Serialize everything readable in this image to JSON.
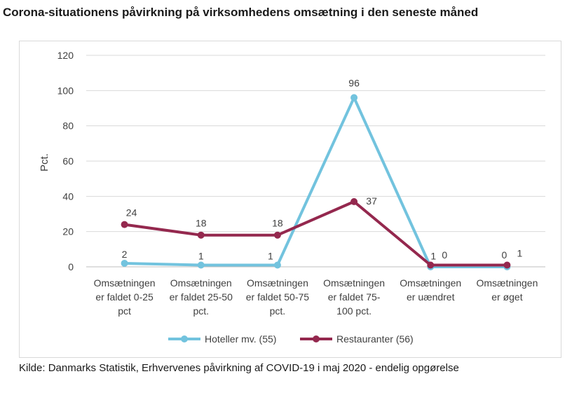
{
  "title": "Corona-situationens påvirkning på virksomhedens omsætning i den seneste måned",
  "source": "Kilde: Danmarks Statistik, Erhvervenes påvirkning af COVID-19 i maj 2020 - endelig opgørelse",
  "chart_data": {
    "type": "line",
    "ylabel": "Pct.",
    "ylim": [
      0,
      120
    ],
    "yticks": [
      0,
      20,
      40,
      60,
      80,
      100,
      120
    ],
    "grid": true,
    "legend": "bottom",
    "categories": [
      [
        "Omsætningen",
        "er faldet 0-25",
        "pct"
      ],
      [
        "Omsætningen",
        "er faldet 25-50",
        "pct."
      ],
      [
        "Omsætningen",
        "er faldet 50-75",
        "pct."
      ],
      [
        "Omsætningen",
        "er faldet 75-",
        "100 pct."
      ],
      [
        "Omsætningen",
        "er uændret"
      ],
      [
        "Omsætningen",
        "er øget"
      ]
    ],
    "series": [
      {
        "name": "Hoteller mv. (55)",
        "color": "#72c3de",
        "values": [
          2,
          1,
          1,
          96,
          0,
          0
        ]
      },
      {
        "name": "Restauranter (56)",
        "color": "#94284e",
        "values": [
          24,
          18,
          18,
          37,
          1,
          1
        ]
      }
    ]
  }
}
